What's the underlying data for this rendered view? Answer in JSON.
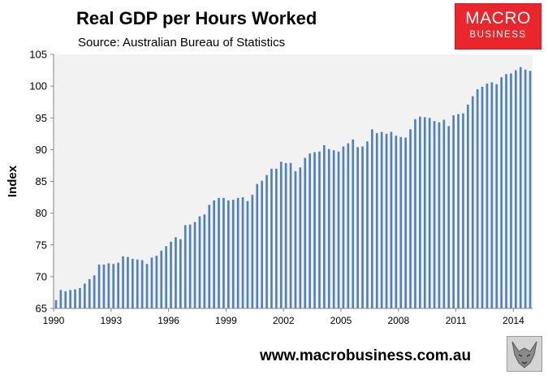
{
  "header": {
    "title": "Real GDP per Hours Worked",
    "subtitle": "Source: Australian Bureau of Statistics"
  },
  "logo": {
    "main": "MACRO",
    "sub": "BUSINESS"
  },
  "footer": {
    "website": "www.macrobusiness.com.au"
  },
  "colors": {
    "bar": "#4f81bd",
    "plot_bg": "#f2f2f2",
    "logo_bg": "#e8262b"
  },
  "chart_data": {
    "type": "bar",
    "title": "Real GDP per Hours Worked",
    "subtitle": "Source: Australian Bureau of Statistics",
    "xlabel": "",
    "ylabel": "Index",
    "ylim": [
      65,
      105
    ],
    "yticks": [
      65,
      70,
      75,
      80,
      85,
      90,
      95,
      100,
      105
    ],
    "xticks": [
      "1990",
      "1993",
      "1996",
      "1999",
      "2002",
      "2005",
      "2008",
      "2011",
      "2014"
    ],
    "grid": false,
    "legend": "none",
    "frequency": "quarterly",
    "start": "1990",
    "series": [
      {
        "values": [
          66.3,
          67.9,
          67.7,
          67.9,
          68.0,
          68.2,
          68.9,
          69.6,
          70.2,
          71.9,
          71.9,
          72.1,
          72.0,
          72.2,
          73.2,
          73.1,
          72.8,
          72.7,
          72.6,
          72.0,
          73.0,
          73.3,
          74.1,
          74.8,
          75.5,
          76.2,
          75.9,
          78.1,
          78.2,
          78.6,
          79.5,
          79.8,
          81.3,
          82.0,
          82.4,
          82.4,
          82.0,
          82.1,
          82.4,
          82.5,
          81.9,
          82.9,
          84.6,
          85.1,
          86.0,
          87.0,
          87.0,
          88.1,
          87.9,
          87.9,
          86.6,
          87.2,
          88.7,
          89.4,
          89.6,
          89.7,
          90.7,
          90.1,
          89.9,
          89.7,
          90.5,
          91.0,
          91.6,
          90.4,
          90.5,
          91.3,
          93.2,
          92.6,
          92.8,
          92.5,
          92.8,
          92.2,
          92.0,
          91.9,
          93.2,
          94.8,
          95.2,
          95.1,
          95.0,
          94.5,
          94.3,
          94.7,
          93.7,
          95.4,
          95.6,
          95.7,
          97.1,
          98.4,
          99.5,
          99.9,
          100.4,
          100.6,
          100.3,
          101.4,
          101.9,
          102.0,
          102.5,
          103.0,
          102.6,
          102.4
        ]
      }
    ]
  }
}
